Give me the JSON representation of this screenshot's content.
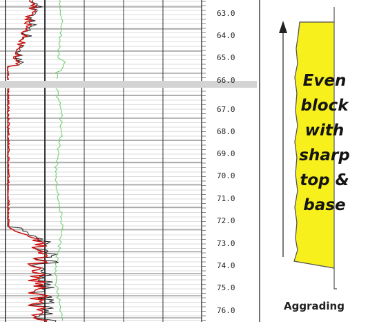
{
  "log_panel": {
    "depth_labels": [
      "63.0",
      "64.0",
      "65.0",
      "66.0",
      "67.0",
      "68.0",
      "69.0",
      "70.0",
      "71.0",
      "72.0",
      "73.0",
      "74.0",
      "75.0",
      "76.0"
    ]
  },
  "facies_panel": {
    "block_text_lines": [
      "Even",
      "block",
      "with",
      "sharp",
      "top &",
      "base"
    ],
    "caption": "Aggrading",
    "block_color": "#f7f01c",
    "arrow": "arrow-up-icon"
  },
  "colors": {
    "gamma_ray_curve": "#cc1111",
    "secondary_curve": "#222222",
    "resistivity_curve": "#66cc66",
    "background": "#ffffff"
  }
}
